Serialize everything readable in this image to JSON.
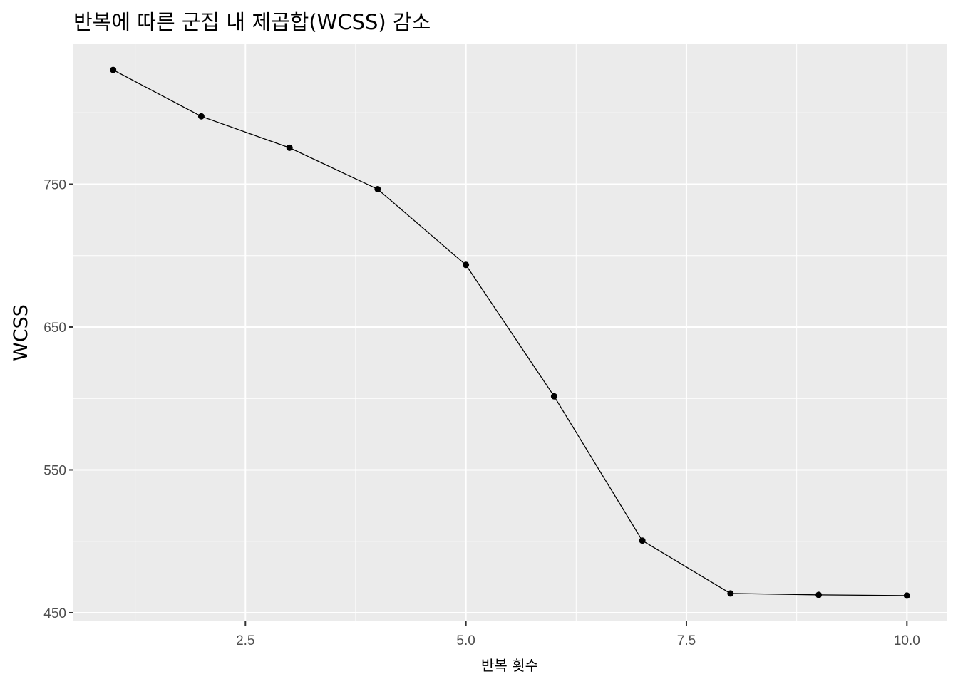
{
  "chart_data": {
    "type": "line",
    "title": "반복에 따른 군집 내 제곱합(WCSS) 감소",
    "xlabel": "반복 횟수",
    "ylabel": "WCSS",
    "x": [
      1,
      2,
      3,
      4,
      5,
      6,
      7,
      8,
      9,
      10
    ],
    "series": [
      {
        "values": [
          830,
          797.5,
          775.5,
          746.5,
          693.5,
          601.5,
          500.5,
          463.5,
          462.5,
          462
        ]
      }
    ],
    "xlim": [
      0.55,
      10.45
    ],
    "ylim": [
      444,
      848
    ],
    "x_ticks": [
      2.5,
      5.0,
      7.5,
      10.0
    ],
    "x_tick_labels": [
      "2.5",
      "5.0",
      "7.5",
      "10.0"
    ],
    "y_ticks": [
      450,
      550,
      650,
      750
    ],
    "y_tick_labels": [
      "450",
      "550",
      "650",
      "750"
    ],
    "grid": true,
    "colors": {
      "panel": "#ebebeb",
      "grid": "#ffffff",
      "line": "#000000",
      "point": "#000000",
      "tick_text": "#4d4d4d"
    }
  }
}
